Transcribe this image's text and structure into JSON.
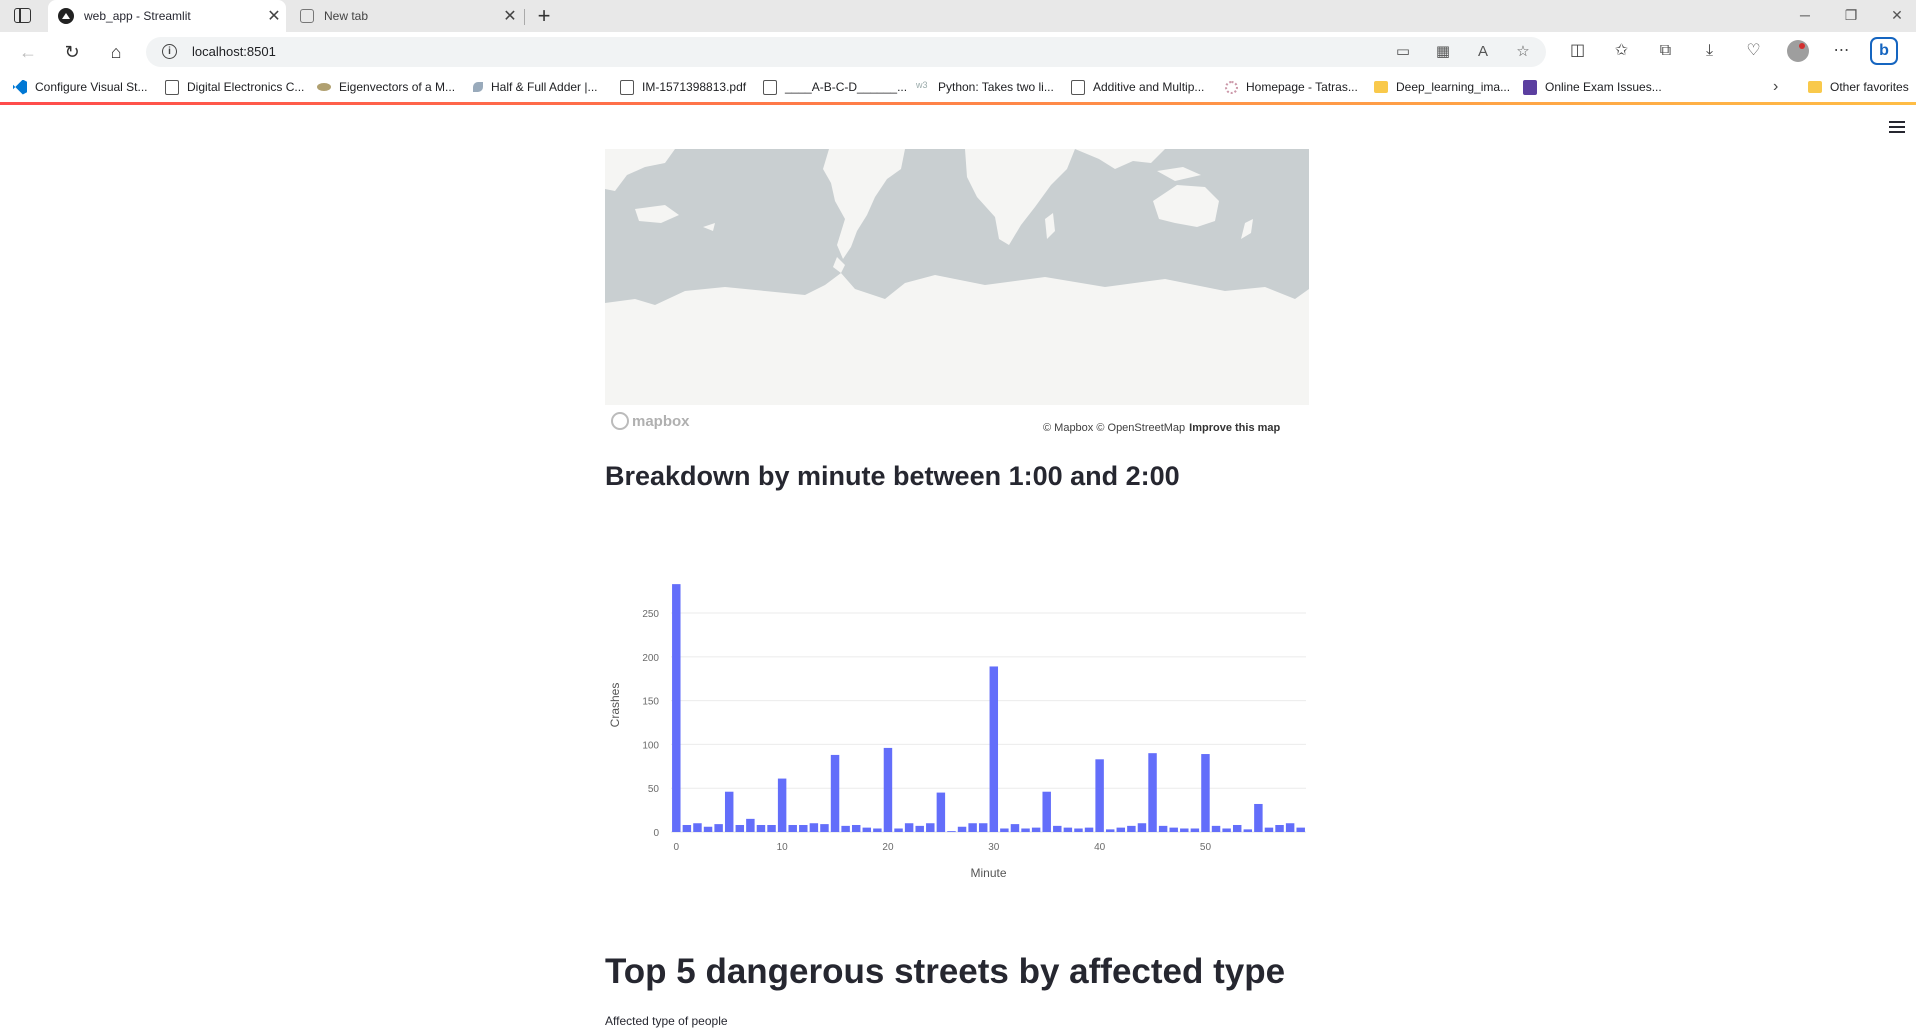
{
  "browser": {
    "tabs": [
      {
        "title": "web_app - Streamlit",
        "active": true
      },
      {
        "title": "New tab",
        "active": false
      }
    ],
    "url": "localhost:8501",
    "bookmarks": [
      {
        "label": "Configure Visual St...",
        "icon": "vscode-icon"
      },
      {
        "label": "Digital Electronics C...",
        "icon": "document-icon"
      },
      {
        "label": "Eigenvectors of a M...",
        "icon": "image-icon"
      },
      {
        "label": "Half & Full Adder |...",
        "icon": "leaf-icon"
      },
      {
        "label": "IM-1571398813.pdf",
        "icon": "document-icon"
      },
      {
        "label": "____A-B-C-D______...",
        "icon": "document-icon"
      },
      {
        "label": "Python: Takes two li...",
        "icon": "w3-icon"
      },
      {
        "label": "Additive and Multip...",
        "icon": "document-icon"
      },
      {
        "label": "Homepage - Tatras...",
        "icon": "flower-icon"
      },
      {
        "label": "Deep_learning_ima...",
        "icon": "folder-icon"
      },
      {
        "label": "Online Exam Issues...",
        "icon": "form-icon"
      }
    ],
    "other_favorites": "Other favorites"
  },
  "map": {
    "logo_text": "mapbox",
    "attribution": "© Mapbox © OpenStreetMap",
    "improve_link": "Improve this map",
    "colors": {
      "water": "#c9cfd1",
      "land": "#f5f5f3"
    }
  },
  "page": {
    "breakdown_heading": "Breakdown by minute between 1:00 and 2:00",
    "top_streets_heading": "Top 5 dangerous streets by affected type",
    "affected_caption": "Affected type of people"
  },
  "chart_data": {
    "type": "bar",
    "xlabel": "Minute",
    "ylabel": "Crashes",
    "x": [
      0,
      1,
      2,
      3,
      4,
      5,
      6,
      7,
      8,
      9,
      10,
      11,
      12,
      13,
      14,
      15,
      16,
      17,
      18,
      19,
      20,
      21,
      22,
      23,
      24,
      25,
      26,
      27,
      28,
      29,
      30,
      31,
      32,
      33,
      34,
      35,
      36,
      37,
      38,
      39,
      40,
      41,
      42,
      43,
      44,
      45,
      46,
      47,
      48,
      49,
      50,
      51,
      52,
      53,
      54,
      55,
      56,
      57,
      58,
      59
    ],
    "values": [
      283,
      8,
      10,
      6,
      9,
      46,
      8,
      15,
      8,
      8,
      61,
      8,
      8,
      10,
      9,
      88,
      7,
      8,
      5,
      4,
      96,
      4,
      10,
      7,
      10,
      45,
      1,
      6,
      10,
      10,
      189,
      4,
      9,
      4,
      5,
      46,
      7,
      5,
      4,
      5,
      83,
      3,
      5,
      7,
      10,
      90,
      7,
      5,
      4,
      4,
      89,
      7,
      4,
      8,
      3,
      32,
      5,
      8,
      10,
      5
    ],
    "xticks": [
      0,
      10,
      20,
      30,
      40,
      50
    ],
    "yticks": [
      0,
      50,
      100,
      150,
      200,
      250
    ],
    "xlim": [
      -0.5,
      59.5
    ],
    "ylim": [
      0,
      290
    ],
    "grid": true,
    "bar_color": "#636efa"
  }
}
